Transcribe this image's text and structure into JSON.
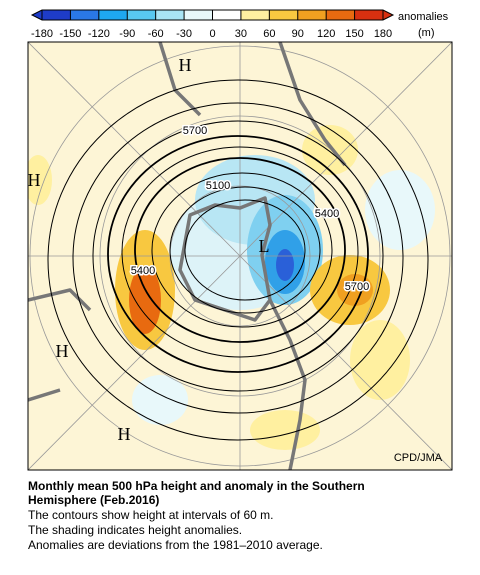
{
  "colorbar": {
    "ticks": [
      -180,
      -150,
      -120,
      -90,
      -60,
      -30,
      0,
      30,
      60,
      90,
      120,
      150,
      180
    ],
    "colors": [
      "#1e3cc8",
      "#2a78e6",
      "#1ea8f0",
      "#58c8f0",
      "#a8e4f4",
      "#e8f8fa",
      "#ffffff",
      "#fff0a0",
      "#f8c840",
      "#f0a020",
      "#e86a10",
      "#d83010"
    ],
    "label": "anomalies",
    "unit": "(m)"
  },
  "contour_labels": [
    "5700",
    "5100",
    "5400",
    "5400",
    "5700"
  ],
  "centers": [
    "H",
    "H",
    "H",
    "H",
    "L"
  ],
  "credit": "CPD/JMA",
  "caption": {
    "title": [
      "Monthly mean 500 hPa height and anomaly in the Southern",
      "Hemisphere (Feb.2016)"
    ],
    "lines": [
      "The contours show height at intervals of 60 m.",
      "The shading indicates height anomalies.",
      "Anomalies are deviations from the 1981–2010 average."
    ]
  }
}
